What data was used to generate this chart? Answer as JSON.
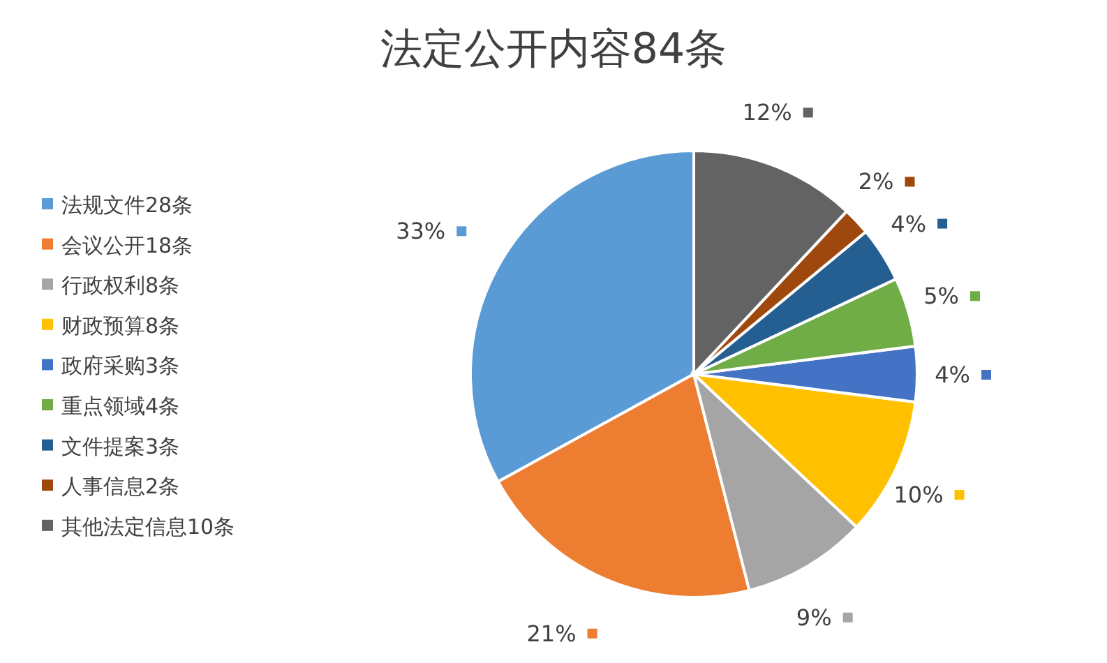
{
  "chart_data": {
    "type": "pie",
    "title": "法定公开内容84条",
    "categories": [
      "法规文件28条",
      "会议公开18条",
      "行政权利8条",
      "财政预算8条",
      "政府采购3条",
      "重点领域4条",
      "文件提案3条",
      "人事信息2条",
      "其他法定信息10条"
    ],
    "values": [
      33,
      21,
      9,
      10,
      4,
      5,
      4,
      2,
      12
    ],
    "value_labels": [
      "33%",
      "21%",
      "9%",
      "10%",
      "4%",
      "5%",
      "4%",
      "2%",
      "12%"
    ],
    "colors": [
      "#5b9bd5",
      "#ed7d31",
      "#a5a5a5",
      "#ffc000",
      "#4472c4",
      "#70ad47",
      "#255e91",
      "#9e480e",
      "#636363"
    ],
    "legend": "left"
  }
}
